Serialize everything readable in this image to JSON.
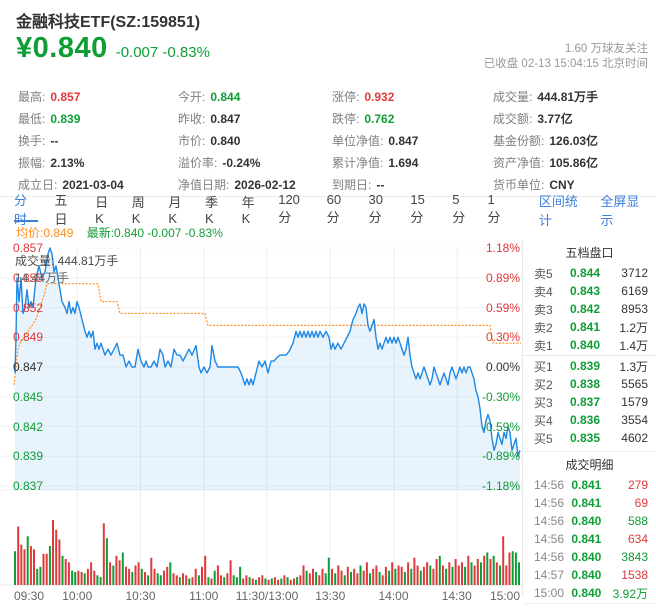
{
  "colors": {
    "up": "#e0393b",
    "down": "#0f9e35",
    "avg": "#ff8f1f",
    "line": "#1e88e5",
    "link": "#3d7fd9",
    "dark": "#333"
  },
  "header": {
    "title": "金融科技ETF(SZ:159851)",
    "price": "¥0.840",
    "change": "-0.007 -0.83%",
    "followers": "1.60 万球友关注",
    "market_status": "已收盘 02-13 15:04:15 北京时间"
  },
  "stats": {
    "columns": [
      [
        {
          "l": "最高:",
          "v": "0.857",
          "c": "up"
        },
        {
          "l": "最低:",
          "v": "0.839",
          "c": "down"
        },
        {
          "l": "换手:",
          "v": "--"
        },
        {
          "l": "振幅:",
          "v": "2.13%"
        },
        {
          "l": "成立日:",
          "v": "2021-03-04"
        }
      ],
      [
        {
          "l": "今开:",
          "v": "0.844",
          "c": "down"
        },
        {
          "l": "昨收:",
          "v": "0.847"
        },
        {
          "l": "市价:",
          "v": "0.840"
        },
        {
          "l": "溢价率:",
          "v": "-0.24%"
        },
        {
          "l": "净值日期:",
          "v": "2026-02-12"
        }
      ],
      [
        {
          "l": "涨停:",
          "v": "0.932",
          "c": "up"
        },
        {
          "l": "跌停:",
          "v": "0.762",
          "c": "down"
        },
        {
          "l": "单位净值:",
          "v": "0.847"
        },
        {
          "l": "累计净值:",
          "v": "1.694"
        },
        {
          "l": "到期日:",
          "v": "--"
        }
      ],
      [
        {
          "l": "成交量:",
          "v": "444.81万手"
        },
        {
          "l": "成交额:",
          "v": "3.77亿"
        },
        {
          "l": "基金份额:",
          "v": "126.03亿"
        },
        {
          "l": "资产净值:",
          "v": "105.86亿"
        },
        {
          "l": "货币单位:",
          "v": "CNY"
        }
      ]
    ]
  },
  "tabs": {
    "items": [
      "分时",
      "五日",
      "日K",
      "周K",
      "月K",
      "季K",
      "年K",
      "120分",
      "60分",
      "30分",
      "15分",
      "5分",
      "1分"
    ],
    "active_index": 0,
    "right_links": [
      "区间统计",
      "全屏显示"
    ]
  },
  "legend": {
    "avg": "均价:0.849",
    "latest": "最新:0.840 -0.007 -0.83%"
  },
  "chart_data": {
    "type": "line",
    "title": "分时走势",
    "x_ticks": [
      "09:30",
      "10:00",
      "10:30",
      "11:00",
      "11:30/13:00",
      "13:30",
      "14:00",
      "14:30",
      "15:00"
    ],
    "y_left": [
      "0.857",
      "0.855",
      "0.852",
      "0.849",
      "0.847",
      "0.845",
      "0.842",
      "0.839",
      "0.837"
    ],
    "y_right": [
      "1.18%",
      "0.89%",
      "0.59%",
      "0.30%",
      "0.00%",
      "-0.30%",
      "-0.59%",
      "-0.89%",
      "-1.18%"
    ],
    "ylim": [
      0.837,
      0.857
    ],
    "prev_close": 0.847,
    "open": 0.844,
    "high": 0.857,
    "low": 0.839,
    "close": 0.84,
    "avg_close": 0.849,
    "price_points": [
      [
        15,
        0.8465
      ],
      [
        16,
        0.8495
      ],
      [
        17,
        0.8545
      ],
      [
        19,
        0.8525
      ],
      [
        21,
        0.8545
      ],
      [
        23,
        0.8515
      ],
      [
        25,
        0.852
      ],
      [
        27,
        0.8535
      ],
      [
        29,
        0.852
      ],
      [
        31,
        0.8525
      ],
      [
        33,
        0.852
      ],
      [
        36,
        0.8545
      ],
      [
        39,
        0.8555
      ],
      [
        42,
        0.8545
      ],
      [
        45,
        0.855
      ],
      [
        48,
        0.8565
      ],
      [
        50,
        0.857
      ],
      [
        52,
        0.8565
      ],
      [
        54,
        0.855
      ],
      [
        56,
        0.8555
      ],
      [
        58,
        0.8545
      ],
      [
        60,
        0.8535
      ],
      [
        62,
        0.8525
      ],
      [
        65,
        0.852
      ],
      [
        67,
        0.8515
      ],
      [
        69,
        0.8525
      ],
      [
        71,
        0.8515
      ],
      [
        73,
        0.852
      ],
      [
        75,
        0.8515
      ],
      [
        77,
        0.8525
      ],
      [
        79,
        0.852
      ],
      [
        82,
        0.851
      ],
      [
        85,
        0.85
      ],
      [
        87,
        0.8495
      ],
      [
        89,
        0.85
      ],
      [
        91,
        0.8495
      ],
      [
        93,
        0.85
      ],
      [
        95,
        0.8485
      ],
      [
        97,
        0.849
      ],
      [
        99,
        0.8485
      ],
      [
        101,
        0.849
      ],
      [
        103,
        0.8485
      ],
      [
        105,
        0.848
      ],
      [
        108,
        0.8485
      ],
      [
        111,
        0.848
      ],
      [
        114,
        0.8485
      ],
      [
        117,
        0.849
      ],
      [
        120,
        0.848
      ],
      [
        123,
        0.848
      ],
      [
        126,
        0.847
      ],
      [
        129,
        0.8475
      ],
      [
        132,
        0.847
      ],
      [
        135,
        0.847
      ],
      [
        138,
        0.8485
      ],
      [
        141,
        0.8475
      ],
      [
        144,
        0.847
      ],
      [
        146,
        0.8475
      ],
      [
        148,
        0.847
      ],
      [
        151,
        0.847
      ],
      [
        154,
        0.8475
      ],
      [
        157,
        0.847
      ],
      [
        160,
        0.8485
      ],
      [
        163,
        0.848
      ],
      [
        165,
        0.847
      ],
      [
        168,
        0.8475
      ],
      [
        171,
        0.847
      ],
      [
        174,
        0.8485
      ],
      [
        177,
        0.848
      ],
      [
        180,
        0.848
      ],
      [
        183,
        0.8475
      ],
      [
        186,
        0.848
      ],
      [
        189,
        0.8485
      ],
      [
        192,
        0.848
      ],
      [
        196,
        0.8488
      ],
      [
        199,
        0.847
      ],
      [
        201,
        0.8465
      ],
      [
        204,
        0.847
      ],
      [
        207,
        0.8465
      ],
      [
        210,
        0.847
      ],
      [
        212,
        0.8488
      ],
      [
        215,
        0.8475
      ],
      [
        218,
        0.847
      ],
      [
        222,
        0.847
      ],
      [
        226,
        0.847
      ],
      [
        230,
        0.847
      ],
      [
        234,
        0.847
      ],
      [
        238,
        0.847
      ],
      [
        241,
        0.8465
      ],
      [
        243,
        0.846
      ],
      [
        245,
        0.8455
      ],
      [
        247,
        0.846
      ],
      [
        249,
        0.8455
      ],
      [
        251,
        0.846
      ],
      [
        253,
        0.8455
      ],
      [
        256,
        0.8465
      ],
      [
        259,
        0.8475
      ],
      [
        262,
        0.847
      ],
      [
        265,
        0.8475
      ],
      [
        268,
        0.8465
      ],
      [
        271,
        0.8475
      ],
      [
        274,
        0.8475
      ],
      [
        277,
        0.8478
      ],
      [
        280,
        0.848
      ],
      [
        283,
        0.848
      ],
      [
        286,
        0.848
      ],
      [
        289,
        0.8483
      ],
      [
        293,
        0.849
      ],
      [
        296,
        0.85
      ],
      [
        298,
        0.8495
      ],
      [
        300,
        0.85
      ],
      [
        302,
        0.8495
      ],
      [
        304,
        0.85
      ],
      [
        306,
        0.8495
      ],
      [
        308,
        0.85
      ],
      [
        310,
        0.8495
      ],
      [
        312,
        0.85
      ],
      [
        314,
        0.8495
      ],
      [
        316,
        0.85
      ],
      [
        318,
        0.8495
      ],
      [
        320,
        0.85
      ],
      [
        323,
        0.8495
      ],
      [
        326,
        0.85
      ],
      [
        329,
        0.8495
      ],
      [
        331,
        0.8485
      ],
      [
        333,
        0.849
      ],
      [
        335,
        0.8485
      ],
      [
        338,
        0.849
      ],
      [
        341,
        0.8485
      ],
      [
        344,
        0.849
      ],
      [
        347,
        0.8495
      ],
      [
        350,
        0.85
      ],
      [
        353,
        0.851
      ],
      [
        356,
        0.8515
      ],
      [
        358,
        0.852
      ],
      [
        360,
        0.8523
      ],
      [
        362,
        0.8515
      ],
      [
        364,
        0.8523
      ],
      [
        366,
        0.852
      ],
      [
        368,
        0.8505
      ],
      [
        370,
        0.85
      ],
      [
        372,
        0.8505
      ],
      [
        374,
        0.851
      ],
      [
        376,
        0.8495
      ],
      [
        378,
        0.8485
      ],
      [
        380,
        0.849
      ],
      [
        382,
        0.8485
      ],
      [
        384,
        0.849
      ],
      [
        386,
        0.8495
      ],
      [
        388,
        0.849
      ],
      [
        390,
        0.8495
      ],
      [
        392,
        0.849
      ],
      [
        394,
        0.8495
      ],
      [
        396,
        0.849
      ],
      [
        398,
        0.8495
      ],
      [
        400,
        0.849
      ],
      [
        402,
        0.8485
      ],
      [
        404,
        0.848
      ],
      [
        406,
        0.8485
      ],
      [
        408,
        0.8495
      ],
      [
        410,
        0.848
      ],
      [
        412,
        0.847
      ],
      [
        414,
        0.8465
      ],
      [
        416,
        0.846
      ],
      [
        418,
        0.8465
      ],
      [
        420,
        0.846
      ],
      [
        422,
        0.8465
      ],
      [
        424,
        0.847
      ],
      [
        426,
        0.8465
      ],
      [
        428,
        0.846
      ],
      [
        430,
        0.8455
      ],
      [
        432,
        0.846
      ],
      [
        434,
        0.847
      ],
      [
        436,
        0.8465
      ],
      [
        438,
        0.846
      ],
      [
        440,
        0.8455
      ],
      [
        442,
        0.846
      ],
      [
        444,
        0.8465
      ],
      [
        446,
        0.846
      ],
      [
        448,
        0.8455
      ],
      [
        450,
        0.8465
      ],
      [
        452,
        0.847
      ],
      [
        454,
        0.8465
      ],
      [
        456,
        0.846
      ],
      [
        458,
        0.8465
      ],
      [
        460,
        0.847
      ],
      [
        462,
        0.8465
      ],
      [
        464,
        0.847
      ],
      [
        466,
        0.8465
      ],
      [
        468,
        0.847
      ],
      [
        470,
        0.847
      ],
      [
        472,
        0.8465
      ],
      [
        474,
        0.846
      ],
      [
        476,
        0.845
      ],
      [
        478,
        0.8445
      ],
      [
        480,
        0.8435
      ],
      [
        482,
        0.842
      ],
      [
        484,
        0.8415
      ],
      [
        486,
        0.8425
      ],
      [
        488,
        0.843
      ],
      [
        490,
        0.8425
      ],
      [
        492,
        0.841
      ],
      [
        494,
        0.84
      ],
      [
        496,
        0.8405
      ],
      [
        498,
        0.8415
      ],
      [
        500,
        0.841
      ],
      [
        502,
        0.8405
      ],
      [
        504,
        0.8415
      ],
      [
        506,
        0.841
      ],
      [
        508,
        0.842
      ],
      [
        510,
        0.8415
      ],
      [
        512,
        0.84
      ],
      [
        514,
        0.8405
      ],
      [
        516,
        0.841
      ],
      [
        518,
        0.8395
      ],
      [
        520,
        0.84
      ]
    ],
    "avg_points": [
      [
        14,
        0.8455
      ],
      [
        16,
        0.847
      ],
      [
        18,
        0.8485
      ],
      [
        20,
        0.849
      ],
      [
        24,
        0.8495
      ],
      [
        28,
        0.85
      ],
      [
        32,
        0.8505
      ],
      [
        36,
        0.851
      ],
      [
        40,
        0.852
      ],
      [
        44,
        0.853
      ],
      [
        47,
        0.854
      ],
      [
        98,
        0.854
      ],
      [
        101,
        0.8525
      ],
      [
        117,
        0.8525
      ],
      [
        120,
        0.8515
      ],
      [
        205,
        0.8515
      ],
      [
        208,
        0.8505
      ],
      [
        490,
        0.8505
      ],
      [
        493,
        0.849
      ],
      [
        521,
        0.849
      ]
    ],
    "volume": {
      "label": "成交量: 444.81万手",
      "scale_label": "14.44万手",
      "heights": [
        52,
        90,
        62,
        55,
        75,
        60,
        55,
        25,
        28,
        48,
        48,
        60,
        100,
        85,
        70,
        45,
        40,
        35,
        22,
        20,
        22,
        20,
        18,
        25,
        35,
        22,
        15,
        12,
        95,
        72,
        35,
        30,
        45,
        38,
        50,
        28,
        25,
        20,
        30,
        35,
        25,
        20,
        15,
        42,
        25,
        18,
        15,
        22,
        28,
        35,
        18,
        15,
        12,
        18,
        15,
        10,
        12,
        25,
        15,
        28,
        45,
        12,
        10,
        22,
        30,
        15,
        12,
        18,
        38,
        15,
        12,
        28,
        10,
        15,
        12,
        10,
        8,
        12,
        15,
        10,
        8,
        10,
        12,
        8,
        10,
        15,
        12,
        8,
        10,
        12,
        15,
        30,
        22,
        18,
        25,
        20,
        15,
        25,
        18,
        42,
        25,
        18,
        30,
        22,
        15,
        28,
        20,
        25,
        18,
        30,
        22,
        35,
        18,
        25,
        30,
        20,
        15,
        28,
        22,
        35,
        25,
        30,
        28,
        20,
        35,
        25,
        42,
        30,
        22,
        28,
        35,
        30,
        25,
        40,
        45,
        30,
        25,
        35,
        28,
        40,
        30,
        35,
        28,
        45,
        35,
        30,
        40,
        35,
        45,
        50,
        40,
        45,
        35,
        30,
        75,
        30,
        50,
        52,
        50,
        35
      ],
      "colors": "grrrgrrggrrgrrrgrrggrrgrrrggrgrgrrgrrgrrgrgrrggrrgrrgrrgrrgrrgrgrrgrrgggrrgrgrrgrgrrgrgrrgrrgrrgrrggrgrrgrgrrgrrgrrgrrgrgrrgrgrrgrrgrrgrgrgrrrgrgrrgrgrgrgrrrggggr"
    }
  },
  "order_book": {
    "title": "五档盘口",
    "asks": [
      [
        "卖5",
        "0.844",
        "3712"
      ],
      [
        "卖4",
        "0.843",
        "6169"
      ],
      [
        "卖3",
        "0.842",
        "8953"
      ],
      [
        "卖2",
        "0.841",
        "1.2万"
      ],
      [
        "卖1",
        "0.840",
        "1.4万"
      ]
    ],
    "bids": [
      [
        "买1",
        "0.839",
        "1.3万"
      ],
      [
        "买2",
        "0.838",
        "5565"
      ],
      [
        "买3",
        "0.837",
        "1579"
      ],
      [
        "买4",
        "0.836",
        "3554"
      ],
      [
        "买5",
        "0.835",
        "4602"
      ]
    ]
  },
  "trades": {
    "title": "成交明细",
    "rows": [
      [
        "14:56",
        "0.841",
        "279",
        "b"
      ],
      [
        "14:56",
        "0.841",
        "69",
        "b"
      ],
      [
        "14:56",
        "0.840",
        "588",
        "s"
      ],
      [
        "14:56",
        "0.841",
        "634",
        "b"
      ],
      [
        "14:56",
        "0.840",
        "3843",
        "s"
      ],
      [
        "14:57",
        "0.840",
        "1538",
        "b"
      ],
      [
        "15:00",
        "0.840",
        "3.92万",
        "s"
      ]
    ]
  }
}
